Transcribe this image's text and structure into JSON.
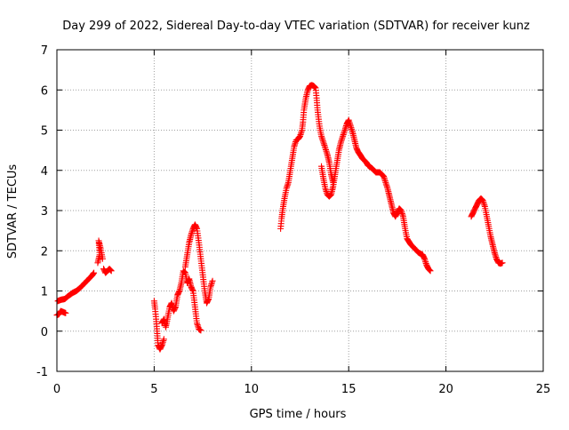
{
  "chart_data": {
    "type": "scatter",
    "title": "Day 299 of 2022, Sidereal Day-to-day VTEC variation (SDTVAR) for receiver kunz",
    "xlabel": "GPS time / hours",
    "ylabel": "SDTVAR / TECUs",
    "xlim": [
      0,
      25
    ],
    "ylim": [
      -1,
      7
    ],
    "xticks": [
      "0",
      "5",
      "10",
      "15",
      "20",
      "25"
    ],
    "yticks": [
      "-1",
      "0",
      "1",
      "2",
      "3",
      "4",
      "5",
      "6",
      "7"
    ],
    "grid": true,
    "marker": "+",
    "colors": {
      "series": "#ff0000",
      "grid": "#a0a0a0",
      "axis": "#000000"
    },
    "series": [
      {
        "name": "SDTVAR",
        "segments": [
          [
            [
              0.0,
              0.4
            ],
            [
              0.1,
              0.42
            ],
            [
              0.2,
              0.5
            ],
            [
              0.3,
              0.48
            ],
            [
              0.45,
              0.45
            ]
          ],
          [
            [
              0.05,
              0.75
            ],
            [
              0.2,
              0.78
            ],
            [
              0.4,
              0.8
            ],
            [
              0.6,
              0.88
            ],
            [
              0.8,
              0.95
            ],
            [
              1.0,
              1.0
            ],
            [
              1.2,
              1.08
            ],
            [
              1.4,
              1.18
            ],
            [
              1.6,
              1.28
            ],
            [
              1.8,
              1.38
            ],
            [
              1.9,
              1.45
            ]
          ],
          [
            [
              2.1,
              1.7
            ],
            [
              2.2,
              1.9
            ],
            [
              2.15,
              2.25
            ],
            [
              2.25,
              2.05
            ],
            [
              2.35,
              1.8
            ]
          ],
          [
            [
              2.4,
              1.55
            ],
            [
              2.5,
              1.45
            ],
            [
              2.6,
              1.5
            ],
            [
              2.7,
              1.55
            ],
            [
              2.8,
              1.5
            ]
          ],
          [
            [
              5.0,
              0.75
            ],
            [
              5.05,
              0.55
            ],
            [
              5.1,
              0.3
            ],
            [
              5.15,
              0.0
            ],
            [
              5.2,
              -0.35
            ],
            [
              5.3,
              -0.45
            ],
            [
              5.4,
              -0.35
            ],
            [
              5.5,
              -0.2
            ]
          ],
          [
            [
              5.4,
              0.2
            ],
            [
              5.5,
              0.3
            ],
            [
              5.6,
              0.1
            ],
            [
              5.7,
              0.35
            ],
            [
              5.8,
              0.6
            ],
            [
              5.9,
              0.7
            ],
            [
              6.0,
              0.5
            ],
            [
              6.1,
              0.6
            ],
            [
              6.2,
              0.9
            ],
            [
              6.3,
              1.0
            ],
            [
              6.4,
              1.2
            ],
            [
              6.5,
              1.5
            ],
            [
              6.6,
              1.45
            ],
            [
              6.7,
              1.2
            ],
            [
              6.8,
              1.3
            ],
            [
              6.9,
              1.1
            ],
            [
              7.0,
              1.0
            ],
            [
              7.1,
              0.6
            ],
            [
              7.2,
              0.2
            ],
            [
              7.3,
              0.05
            ],
            [
              7.4,
              0.02
            ]
          ],
          [
            [
              6.6,
              1.6
            ],
            [
              6.7,
              1.9
            ],
            [
              6.8,
              2.2
            ],
            [
              6.9,
              2.4
            ],
            [
              7.0,
              2.55
            ],
            [
              7.1,
              2.65
            ],
            [
              7.2,
              2.55
            ],
            [
              7.3,
              2.2
            ],
            [
              7.4,
              1.8
            ],
            [
              7.5,
              1.4
            ],
            [
              7.6,
              1.0
            ],
            [
              7.7,
              0.7
            ],
            [
              7.8,
              0.8
            ],
            [
              7.9,
              1.1
            ],
            [
              8.0,
              1.25
            ]
          ],
          [
            [
              11.5,
              2.55
            ],
            [
              11.55,
              2.8
            ],
            [
              11.6,
              3.0
            ],
            [
              11.7,
              3.3
            ],
            [
              11.8,
              3.55
            ],
            [
              11.9,
              3.7
            ],
            [
              12.0,
              4.0
            ],
            [
              12.1,
              4.3
            ],
            [
              12.2,
              4.6
            ],
            [
              12.3,
              4.75
            ],
            [
              12.4,
              4.78
            ],
            [
              12.5,
              4.85
            ],
            [
              12.6,
              5.0
            ],
            [
              12.65,
              5.2
            ],
            [
              12.7,
              5.5
            ],
            [
              12.8,
              5.8
            ],
            [
              12.9,
              6.0
            ],
            [
              13.0,
              6.1
            ],
            [
              13.1,
              6.12
            ],
            [
              13.2,
              6.1
            ],
            [
              13.3,
              6.05
            ],
            [
              13.35,
              5.8
            ],
            [
              13.4,
              5.5
            ],
            [
              13.5,
              5.1
            ],
            [
              13.6,
              4.85
            ],
            [
              13.7,
              4.7
            ],
            [
              13.8,
              4.55
            ],
            [
              13.9,
              4.4
            ],
            [
              14.0,
              4.2
            ],
            [
              14.1,
              3.9
            ],
            [
              14.2,
              3.7
            ]
          ],
          [
            [
              13.6,
              4.1
            ],
            [
              13.7,
              3.8
            ],
            [
              13.8,
              3.55
            ],
            [
              13.9,
              3.4
            ],
            [
              14.0,
              3.35
            ],
            [
              14.1,
              3.4
            ],
            [
              14.2,
              3.6
            ],
            [
              14.3,
              3.9
            ],
            [
              14.4,
              4.2
            ],
            [
              14.5,
              4.5
            ],
            [
              14.6,
              4.7
            ],
            [
              14.7,
              4.85
            ],
            [
              14.8,
              5.0
            ],
            [
              14.9,
              5.15
            ],
            [
              15.0,
              5.25
            ],
            [
              15.1,
              5.1
            ],
            [
              15.2,
              4.95
            ],
            [
              15.3,
              4.75
            ],
            [
              15.4,
              4.55
            ],
            [
              15.5,
              4.45
            ],
            [
              15.6,
              4.38
            ],
            [
              15.7,
              4.3
            ],
            [
              15.8,
              4.25
            ],
            [
              15.9,
              4.2
            ],
            [
              16.0,
              4.12
            ],
            [
              16.2,
              4.05
            ],
            [
              16.4,
              3.95
            ],
            [
              16.6,
              3.95
            ],
            [
              16.8,
              3.85
            ],
            [
              16.9,
              3.7
            ],
            [
              17.0,
              3.55
            ],
            [
              17.1,
              3.35
            ],
            [
              17.2,
              3.15
            ],
            [
              17.3,
              2.95
            ],
            [
              17.4,
              2.85
            ],
            [
              17.5,
              2.95
            ],
            [
              17.6,
              3.05
            ],
            [
              17.7,
              3.0
            ],
            [
              17.8,
              2.85
            ],
            [
              17.9,
              2.55
            ],
            [
              18.0,
              2.3
            ],
            [
              18.2,
              2.15
            ],
            [
              18.4,
              2.05
            ],
            [
              18.6,
              1.95
            ],
            [
              18.8,
              1.9
            ],
            [
              18.9,
              1.8
            ],
            [
              19.0,
              1.65
            ],
            [
              19.1,
              1.55
            ],
            [
              19.2,
              1.5
            ]
          ],
          [
            [
              21.3,
              2.85
            ],
            [
              21.4,
              2.95
            ],
            [
              21.5,
              3.05
            ],
            [
              21.6,
              3.15
            ],
            [
              21.7,
              3.25
            ],
            [
              21.8,
              3.3
            ],
            [
              21.9,
              3.25
            ],
            [
              22.0,
              3.1
            ],
            [
              22.1,
              2.85
            ],
            [
              22.2,
              2.6
            ],
            [
              22.3,
              2.35
            ],
            [
              22.4,
              2.15
            ],
            [
              22.5,
              1.95
            ],
            [
              22.6,
              1.8
            ],
            [
              22.7,
              1.7
            ],
            [
              22.8,
              1.68
            ],
            [
              22.9,
              1.7
            ]
          ]
        ]
      }
    ]
  }
}
